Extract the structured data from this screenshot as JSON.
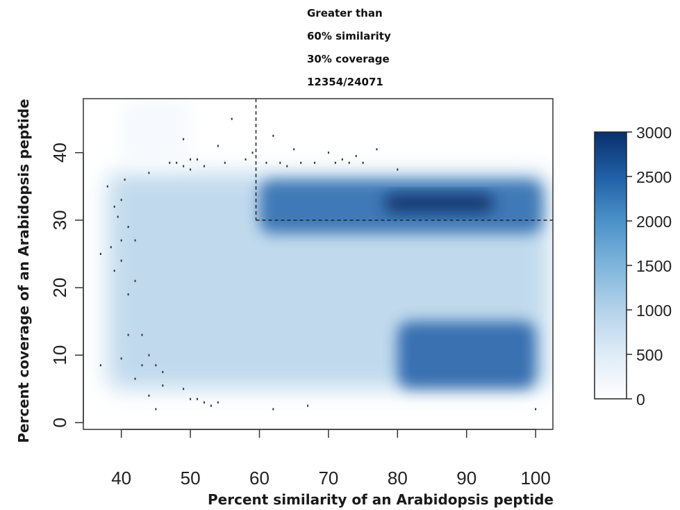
{
  "chart_data": {
    "type": "heatmap",
    "title": "",
    "annotation": [
      "Greater than",
      "60% similarity",
      "30% coverage",
      "12354/24071"
    ],
    "xlabel": "Percent similarity of an Arabidopsis peptide",
    "ylabel": "Percent coverage of an Arabidopsis peptide",
    "xlim": [
      34.5,
      102.5
    ],
    "ylim": [
      -1,
      48
    ],
    "x_ticks": [
      40,
      50,
      60,
      70,
      80,
      90,
      100
    ],
    "y_ticks": [
      0,
      10,
      20,
      30,
      40
    ],
    "threshold": {
      "x": 59.5,
      "y": 30
    },
    "color_scale": {
      "min": 0,
      "max": 3000,
      "ticks": [
        0,
        500,
        1000,
        1500,
        2000,
        2500,
        3000
      ],
      "low_color": "#ffffff",
      "high_color": "#08306b"
    },
    "density_regions": [
      {
        "x": [
          38,
          102
        ],
        "y": [
          5,
          37
        ],
        "density": 900
      },
      {
        "x": [
          60,
          101
        ],
        "y": [
          28,
          36
        ],
        "density": 2400
      },
      {
        "x": [
          78,
          94
        ],
        "y": [
          31,
          34
        ],
        "density": 3000
      },
      {
        "x": [
          80,
          100
        ],
        "y": [
          5,
          15
        ],
        "density": 2500
      },
      {
        "x": [
          40,
          50
        ],
        "y": [
          38,
          48
        ],
        "density": 150
      }
    ],
    "outlier_points": [
      [
        37,
        25
      ],
      [
        37,
        8.5
      ],
      [
        38,
        35
      ],
      [
        38.5,
        26
      ],
      [
        39,
        32
      ],
      [
        39,
        22.5
      ],
      [
        39.5,
        30.5
      ],
      [
        40,
        33
      ],
      [
        40,
        27
      ],
      [
        40,
        24
      ],
      [
        40,
        9.5
      ],
      [
        40.5,
        36
      ],
      [
        41,
        29
      ],
      [
        41,
        19
      ],
      [
        41,
        13
      ],
      [
        42,
        21
      ],
      [
        42,
        27
      ],
      [
        42,
        6.5
      ],
      [
        43,
        8.5
      ],
      [
        43,
        13
      ],
      [
        44,
        37
      ],
      [
        44,
        10
      ],
      [
        44,
        4
      ],
      [
        45,
        8.5
      ],
      [
        45,
        2
      ],
      [
        46,
        5.5
      ],
      [
        46,
        7.5
      ],
      [
        47,
        38.5
      ],
      [
        48,
        38.5
      ],
      [
        49,
        38
      ],
      [
        49,
        42
      ],
      [
        49,
        5
      ],
      [
        50,
        39
      ],
      [
        50,
        37.5
      ],
      [
        50,
        3.5
      ],
      [
        51,
        39
      ],
      [
        51,
        3.5
      ],
      [
        52,
        38
      ],
      [
        52,
        3
      ],
      [
        53,
        2.5
      ],
      [
        54,
        41
      ],
      [
        54,
        3
      ],
      [
        55,
        38.5
      ],
      [
        56,
        45
      ],
      [
        58,
        39
      ],
      [
        59,
        40
      ],
      [
        61,
        38.5
      ],
      [
        62,
        42.5
      ],
      [
        62,
        2
      ],
      [
        63,
        38.5
      ],
      [
        64,
        38
      ],
      [
        65,
        40.5
      ],
      [
        66,
        38.5
      ],
      [
        67,
        2.5
      ],
      [
        68,
        38.5
      ],
      [
        70,
        40
      ],
      [
        71,
        38.5
      ],
      [
        72,
        39
      ],
      [
        73,
        38.5
      ],
      [
        74,
        39.5
      ],
      [
        75,
        38.5
      ],
      [
        77,
        40.5
      ],
      [
        80,
        37.5
      ],
      [
        100,
        2
      ]
    ]
  }
}
